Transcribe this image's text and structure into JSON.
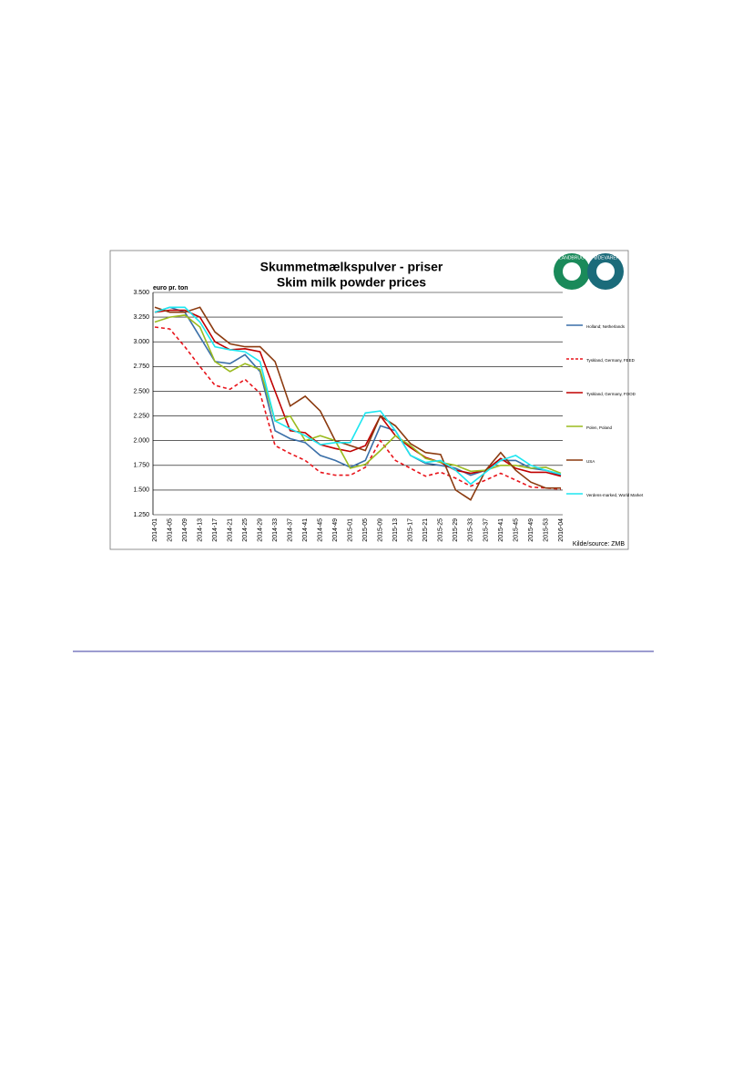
{
  "chart_data": {
    "type": "line",
    "title": "Skummetmælkspulver - priser",
    "subtitle": "Skim milk powder prices",
    "y_label": "euro pr. ton",
    "source": "Kilde/source: ZMB",
    "logo": [
      "LANDBRUG",
      "FØDEVARER"
    ],
    "categories": [
      "2014-01",
      "2014-05",
      "2014-09",
      "2014-13",
      "2014-17",
      "2014-21",
      "2014-25",
      "2014-29",
      "2014-33",
      "2014-37",
      "2014-41",
      "2014-45",
      "2014-49",
      "2015-01",
      "2015-05",
      "2015-09",
      "2015-13",
      "2015-17",
      "2015-21",
      "2015-25",
      "2015-29",
      "2015-33",
      "2015-37",
      "2015-41",
      "2015-45",
      "2015-49",
      "2015-53",
      "2016-04"
    ],
    "ylim": [
      1250,
      3500
    ],
    "yticks": [
      {
        "value": 1250,
        "label": "1.250"
      },
      {
        "value": 1500,
        "label": "1.500"
      },
      {
        "value": 1750,
        "label": "1.750"
      },
      {
        "value": 2000,
        "label": "2.000"
      },
      {
        "value": 2250,
        "label": "2.250"
      },
      {
        "value": 2500,
        "label": "2.500"
      },
      {
        "value": 2750,
        "label": "2.750"
      },
      {
        "value": 3000,
        "label": "3.000"
      },
      {
        "value": 3250,
        "label": "3.250"
      },
      {
        "value": 3500,
        "label": "3.500"
      }
    ],
    "grid": true,
    "legend": "right",
    "series": [
      {
        "name": "Holland; Netherlands",
        "color": "#3a6fa8",
        "dash": false,
        "values": [
          3300,
          3350,
          3300,
          3050,
          2800,
          2780,
          2870,
          2700,
          2100,
          2020,
          1980,
          1850,
          1800,
          1730,
          1800,
          2150,
          2100,
          1850,
          1770,
          1750,
          1720,
          1650,
          1700,
          1800,
          1800,
          1720,
          1700,
          1650
        ]
      },
      {
        "name": "Tyskland, Germany, FEED",
        "color": "#e8141b",
        "dash": true,
        "values": [
          3150,
          3130,
          2950,
          2750,
          2560,
          2520,
          2620,
          2480,
          1950,
          1870,
          1800,
          1680,
          1650,
          1650,
          1730,
          2000,
          1800,
          1720,
          1640,
          1680,
          1620,
          1540,
          1600,
          1670,
          1600,
          1530,
          1520,
          1510
        ]
      },
      {
        "name": "Tyskland, Germany, FOOD",
        "color": "#c00000",
        "dash": false,
        "values": [
          3300,
          3320,
          3320,
          3250,
          3000,
          2920,
          2930,
          2900,
          2500,
          2100,
          2080,
          1960,
          1920,
          1890,
          1950,
          2250,
          2050,
          1930,
          1830,
          1780,
          1700,
          1670,
          1700,
          1820,
          1720,
          1680,
          1680,
          1640
        ]
      },
      {
        "name": "Polen, Poland",
        "color": "#9bbb1f",
        "dash": false,
        "values": [
          3200,
          3250,
          3270,
          3150,
          2800,
          2700,
          2780,
          2720,
          2200,
          2250,
          2000,
          2050,
          2000,
          1720,
          1760,
          1900,
          2050,
          1950,
          1820,
          1780,
          1750,
          1690,
          1700,
          1750,
          1750,
          1720,
          1730,
          1670
        ]
      },
      {
        "name": "USA",
        "color": "#8b3a0f",
        "dash": false,
        "values": [
          3350,
          3300,
          3300,
          3350,
          3100,
          2980,
          2950,
          2950,
          2800,
          2350,
          2450,
          2300,
          2000,
          1950,
          1900,
          2250,
          2150,
          1970,
          1880,
          1860,
          1500,
          1400,
          1700,
          1880,
          1700,
          1580,
          1520,
          1520
        ]
      },
      {
        "name": "Verdens-marked, World Market",
        "color": "#1ee6f0",
        "dash": false,
        "values": [
          3300,
          3350,
          3350,
          3200,
          2950,
          2920,
          2900,
          2800,
          2200,
          2120,
          2050,
          1960,
          1980,
          1980,
          2280,
          2300,
          2100,
          1850,
          1780,
          1800,
          1700,
          1560,
          1680,
          1800,
          1850,
          1750,
          1700,
          1660
        ]
      }
    ]
  }
}
